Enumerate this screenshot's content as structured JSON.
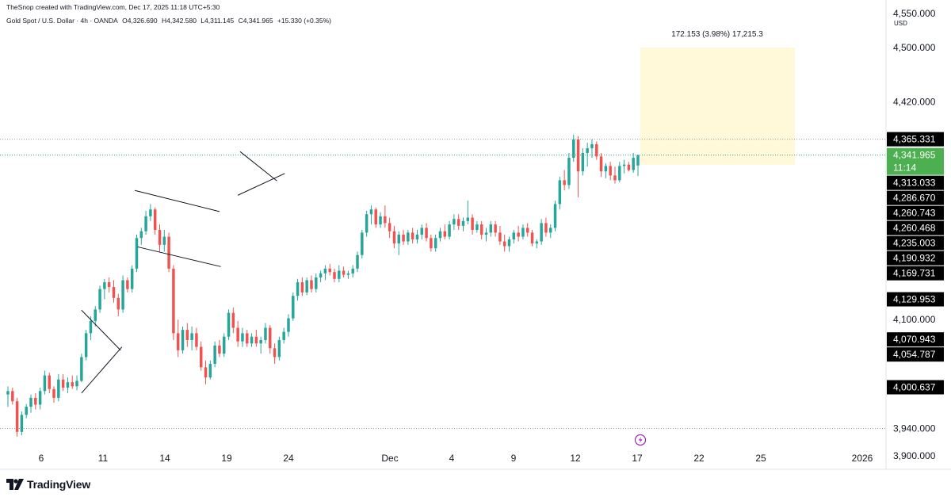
{
  "header": {
    "credit": "TheSnop created with TradingView.com, Dec 17, 2025 11:18 UTC+5:30",
    "symbol": "Gold Spot / U.S. Dollar · 4h · OANDA",
    "open": "O4,326.690",
    "high": "H4,342.580",
    "low": "L4,311.145",
    "close": "C4,341.965",
    "change": "+15.330 (+0.35%)"
  },
  "currency": "USD",
  "brand": {
    "logo_text": "TradingView",
    "logo_icon": "tradingview-logo-icon"
  },
  "colors": {
    "up": "#26a69a",
    "down": "#ef5350",
    "tag_dark": "#000000",
    "tag_last": "#4caf50",
    "projection_fill": "#fff9d9",
    "line": "#131722",
    "grid": "#e0e3eb",
    "event_icon": "#9c27b0"
  },
  "chart_data": {
    "type": "candlestick",
    "title": "Gold Spot / U.S. Dollar · 4h · OANDA",
    "xlabel": "",
    "ylabel": "USD",
    "ylim": [
      3880,
      4570
    ],
    "x_ticks": [
      "6",
      "11",
      "14",
      "19",
      "24",
      "Dec",
      "4",
      "9",
      "12",
      "17",
      "22",
      "25",
      "2026"
    ],
    "y_ticks": [
      "4,550.000",
      "4,500.000",
      "4,420.000",
      "4,100.000",
      "3,940.000",
      "3,900.000"
    ],
    "price_tags": [
      {
        "label": "4,365.331",
        "value": 4365.331,
        "style": "dark"
      },
      {
        "label": "4,341.965",
        "value": 4341.965,
        "sub": "11:14",
        "style": "last"
      },
      {
        "label": "4,313.033",
        "value": 4313.033,
        "style": "dark"
      },
      {
        "label": "4,286.670",
        "value": 4286.67,
        "style": "dark"
      },
      {
        "label": "4,260.743",
        "value": 4260.743,
        "style": "dark"
      },
      {
        "label": "4,260.468",
        "value": 4260.468,
        "style": "dark"
      },
      {
        "label": "4,235.003",
        "value": 4235.003,
        "style": "dark"
      },
      {
        "label": "4,190.932",
        "value": 4190.932,
        "style": "dark"
      },
      {
        "label": "4,169.731",
        "value": 4169.731,
        "style": "dark"
      },
      {
        "label": "4,129.953",
        "value": 4129.953,
        "style": "dark"
      },
      {
        "label": "4,070.943",
        "value": 4070.943,
        "style": "dark"
      },
      {
        "label": "4,054.787",
        "value": 4054.787,
        "style": "dark"
      },
      {
        "label": "4,000.637",
        "value": 4000.637,
        "style": "dark"
      }
    ],
    "reference_lines": [
      4365.331,
      4341.965,
      3940
    ],
    "projection": {
      "label": "172.153 (3.98%) 17,215.3",
      "from": 4327.8,
      "to": 4500
    },
    "candles": [
      {
        "o": 3990,
        "h": 4002,
        "l": 3972,
        "c": 3995
      },
      {
        "o": 3995,
        "h": 4000,
        "l": 3975,
        "c": 3980
      },
      {
        "o": 3980,
        "h": 3985,
        "l": 3928,
        "c": 3935
      },
      {
        "o": 3935,
        "h": 3965,
        "l": 3930,
        "c": 3960
      },
      {
        "o": 3960,
        "h": 3976,
        "l": 3955,
        "c": 3972
      },
      {
        "o": 3972,
        "h": 3990,
        "l": 3963,
        "c": 3985
      },
      {
        "o": 3985,
        "h": 3992,
        "l": 3968,
        "c": 3975
      },
      {
        "o": 3975,
        "h": 4000,
        "l": 3968,
        "c": 3995
      },
      {
        "o": 3995,
        "h": 4025,
        "l": 3990,
        "c": 4018
      },
      {
        "o": 4018,
        "h": 4022,
        "l": 3992,
        "c": 3998
      },
      {
        "o": 3998,
        "h": 4002,
        "l": 3978,
        "c": 3985
      },
      {
        "o": 3985,
        "h": 4020,
        "l": 3980,
        "c": 4012
      },
      {
        "o": 4012,
        "h": 4020,
        "l": 3995,
        "c": 4000
      },
      {
        "o": 4000,
        "h": 4015,
        "l": 3992,
        "c": 4008
      },
      {
        "o": 4008,
        "h": 4018,
        "l": 3998,
        "c": 4002
      },
      {
        "o": 4002,
        "h": 4018,
        "l": 3996,
        "c": 4010
      },
      {
        "o": 4010,
        "h": 4050,
        "l": 4008,
        "c": 4045
      },
      {
        "o": 4045,
        "h": 4085,
        "l": 4040,
        "c": 4080
      },
      {
        "o": 4080,
        "h": 4105,
        "l": 4070,
        "c": 4098
      },
      {
        "o": 4098,
        "h": 4120,
        "l": 4090,
        "c": 4115
      },
      {
        "o": 4115,
        "h": 4150,
        "l": 4110,
        "c": 4145
      },
      {
        "o": 4145,
        "h": 4160,
        "l": 4130,
        "c": 4155
      },
      {
        "o": 4155,
        "h": 4162,
        "l": 4140,
        "c": 4148
      },
      {
        "o": 4148,
        "h": 4158,
        "l": 4125,
        "c": 4132
      },
      {
        "o": 4132,
        "h": 4138,
        "l": 4105,
        "c": 4115
      },
      {
        "o": 4115,
        "h": 4165,
        "l": 4110,
        "c": 4158
      },
      {
        "o": 4158,
        "h": 4162,
        "l": 4140,
        "c": 4145
      },
      {
        "o": 4145,
        "h": 4180,
        "l": 4140,
        "c": 4175
      },
      {
        "o": 4175,
        "h": 4225,
        "l": 4170,
        "c": 4220
      },
      {
        "o": 4220,
        "h": 4235,
        "l": 4210,
        "c": 4230
      },
      {
        "o": 4230,
        "h": 4260,
        "l": 4225,
        "c": 4252
      },
      {
        "o": 4252,
        "h": 4270,
        "l": 4245,
        "c": 4262
      },
      {
        "o": 4262,
        "h": 4265,
        "l": 4225,
        "c": 4232
      },
      {
        "o": 4232,
        "h": 4240,
        "l": 4200,
        "c": 4210
      },
      {
        "o": 4210,
        "h": 4232,
        "l": 4200,
        "c": 4222
      },
      {
        "o": 4222,
        "h": 4228,
        "l": 4170,
        "c": 4175
      },
      {
        "o": 4175,
        "h": 4180,
        "l": 4070,
        "c": 4080
      },
      {
        "o": 4080,
        "h": 4100,
        "l": 4045,
        "c": 4055
      },
      {
        "o": 4055,
        "h": 4090,
        "l": 4050,
        "c": 4085
      },
      {
        "o": 4085,
        "h": 4095,
        "l": 4060,
        "c": 4070
      },
      {
        "o": 4070,
        "h": 4090,
        "l": 4055,
        "c": 4080
      },
      {
        "o": 4080,
        "h": 4088,
        "l": 4055,
        "c": 4060
      },
      {
        "o": 4060,
        "h": 4068,
        "l": 4025,
        "c": 4030
      },
      {
        "o": 4030,
        "h": 4040,
        "l": 4005,
        "c": 4015
      },
      {
        "o": 4015,
        "h": 4040,
        "l": 4012,
        "c": 4035
      },
      {
        "o": 4035,
        "h": 4068,
        "l": 4030,
        "c": 4062
      },
      {
        "o": 4062,
        "h": 4070,
        "l": 4045,
        "c": 4050
      },
      {
        "o": 4050,
        "h": 4080,
        "l": 4045,
        "c": 4075
      },
      {
        "o": 4075,
        "h": 4115,
        "l": 4070,
        "c": 4110
      },
      {
        "o": 4110,
        "h": 4118,
        "l": 4080,
        "c": 4088
      },
      {
        "o": 4088,
        "h": 4098,
        "l": 4060,
        "c": 4068
      },
      {
        "o": 4068,
        "h": 4088,
        "l": 4060,
        "c": 4080
      },
      {
        "o": 4080,
        "h": 4085,
        "l": 4060,
        "c": 4065
      },
      {
        "o": 4065,
        "h": 4080,
        "l": 4060,
        "c": 4075
      },
      {
        "o": 4075,
        "h": 4085,
        "l": 4060,
        "c": 4065
      },
      {
        "o": 4065,
        "h": 4075,
        "l": 4050,
        "c": 4070
      },
      {
        "o": 4070,
        "h": 4095,
        "l": 4065,
        "c": 4088
      },
      {
        "o": 4088,
        "h": 4092,
        "l": 4050,
        "c": 4058
      },
      {
        "o": 4058,
        "h": 4065,
        "l": 4035,
        "c": 4045
      },
      {
        "o": 4045,
        "h": 4075,
        "l": 4040,
        "c": 4070
      },
      {
        "o": 4070,
        "h": 4088,
        "l": 4065,
        "c": 4082
      },
      {
        "o": 4082,
        "h": 4108,
        "l": 4075,
        "c": 4102
      },
      {
        "o": 4102,
        "h": 4140,
        "l": 4098,
        "c": 4135
      },
      {
        "o": 4135,
        "h": 4160,
        "l": 4128,
        "c": 4155
      },
      {
        "o": 4155,
        "h": 4162,
        "l": 4135,
        "c": 4140
      },
      {
        "o": 4140,
        "h": 4162,
        "l": 4136,
        "c": 4158
      },
      {
        "o": 4158,
        "h": 4165,
        "l": 4140,
        "c": 4145
      },
      {
        "o": 4145,
        "h": 4168,
        "l": 4140,
        "c": 4162
      },
      {
        "o": 4162,
        "h": 4172,
        "l": 4155,
        "c": 4168
      },
      {
        "o": 4168,
        "h": 4180,
        "l": 4158,
        "c": 4175
      },
      {
        "o": 4175,
        "h": 4182,
        "l": 4165,
        "c": 4170
      },
      {
        "o": 4170,
        "h": 4175,
        "l": 4155,
        "c": 4160
      },
      {
        "o": 4160,
        "h": 4180,
        "l": 4155,
        "c": 4172
      },
      {
        "o": 4172,
        "h": 4178,
        "l": 4162,
        "c": 4166
      },
      {
        "o": 4166,
        "h": 4172,
        "l": 4160,
        "c": 4168
      },
      {
        "o": 4168,
        "h": 4180,
        "l": 4162,
        "c": 4175
      },
      {
        "o": 4175,
        "h": 4200,
        "l": 4170,
        "c": 4195
      },
      {
        "o": 4195,
        "h": 4232,
        "l": 4190,
        "c": 4228
      },
      {
        "o": 4228,
        "h": 4260,
        "l": 4222,
        "c": 4255
      },
      {
        "o": 4255,
        "h": 4268,
        "l": 4240,
        "c": 4262
      },
      {
        "o": 4262,
        "h": 4265,
        "l": 4235,
        "c": 4240
      },
      {
        "o": 4240,
        "h": 4258,
        "l": 4235,
        "c": 4252
      },
      {
        "o": 4252,
        "h": 4268,
        "l": 4235,
        "c": 4242
      },
      {
        "o": 4242,
        "h": 4250,
        "l": 4220,
        "c": 4230
      },
      {
        "o": 4230,
        "h": 4238,
        "l": 4205,
        "c": 4212
      },
      {
        "o": 4212,
        "h": 4230,
        "l": 4195,
        "c": 4225
      },
      {
        "o": 4225,
        "h": 4232,
        "l": 4210,
        "c": 4215
      },
      {
        "o": 4215,
        "h": 4232,
        "l": 4210,
        "c": 4228
      },
      {
        "o": 4228,
        "h": 4235,
        "l": 4212,
        "c": 4218
      },
      {
        "o": 4218,
        "h": 4232,
        "l": 4212,
        "c": 4225
      },
      {
        "o": 4225,
        "h": 4240,
        "l": 4218,
        "c": 4235
      },
      {
        "o": 4235,
        "h": 4242,
        "l": 4215,
        "c": 4220
      },
      {
        "o": 4220,
        "h": 4225,
        "l": 4200,
        "c": 4205
      },
      {
        "o": 4205,
        "h": 4225,
        "l": 4200,
        "c": 4220
      },
      {
        "o": 4220,
        "h": 4235,
        "l": 4215,
        "c": 4230
      },
      {
        "o": 4230,
        "h": 4240,
        "l": 4218,
        "c": 4222
      },
      {
        "o": 4222,
        "h": 4245,
        "l": 4218,
        "c": 4240
      },
      {
        "o": 4240,
        "h": 4255,
        "l": 4232,
        "c": 4248
      },
      {
        "o": 4248,
        "h": 4255,
        "l": 4232,
        "c": 4238
      },
      {
        "o": 4238,
        "h": 4250,
        "l": 4230,
        "c": 4245
      },
      {
        "o": 4245,
        "h": 4275,
        "l": 4240,
        "c": 4250
      },
      {
        "o": 4250,
        "h": 4255,
        "l": 4225,
        "c": 4232
      },
      {
        "o": 4232,
        "h": 4245,
        "l": 4228,
        "c": 4240
      },
      {
        "o": 4240,
        "h": 4245,
        "l": 4218,
        "c": 4225
      },
      {
        "o": 4225,
        "h": 4235,
        "l": 4215,
        "c": 4228
      },
      {
        "o": 4228,
        "h": 4245,
        "l": 4222,
        "c": 4240
      },
      {
        "o": 4240,
        "h": 4245,
        "l": 4222,
        "c": 4228
      },
      {
        "o": 4228,
        "h": 4238,
        "l": 4210,
        "c": 4215
      },
      {
        "o": 4215,
        "h": 4225,
        "l": 4200,
        "c": 4208
      },
      {
        "o": 4208,
        "h": 4222,
        "l": 4200,
        "c": 4218
      },
      {
        "o": 4218,
        "h": 4232,
        "l": 4212,
        "c": 4228
      },
      {
        "o": 4228,
        "h": 4238,
        "l": 4215,
        "c": 4222
      },
      {
        "o": 4222,
        "h": 4240,
        "l": 4218,
        "c": 4235
      },
      {
        "o": 4235,
        "h": 4242,
        "l": 4222,
        "c": 4228
      },
      {
        "o": 4228,
        "h": 4232,
        "l": 4208,
        "c": 4212
      },
      {
        "o": 4212,
        "h": 4218,
        "l": 4205,
        "c": 4215
      },
      {
        "o": 4215,
        "h": 4248,
        "l": 4210,
        "c": 4242
      },
      {
        "o": 4242,
        "h": 4250,
        "l": 4222,
        "c": 4228
      },
      {
        "o": 4228,
        "h": 4240,
        "l": 4220,
        "c": 4235
      },
      {
        "o": 4235,
        "h": 4275,
        "l": 4230,
        "c": 4270
      },
      {
        "o": 4270,
        "h": 4310,
        "l": 4262,
        "c": 4305
      },
      {
        "o": 4305,
        "h": 4320,
        "l": 4290,
        "c": 4298
      },
      {
        "o": 4298,
        "h": 4345,
        "l": 4292,
        "c": 4338
      },
      {
        "o": 4338,
        "h": 4372,
        "l": 4332,
        "c": 4365
      },
      {
        "o": 4365,
        "h": 4370,
        "l": 4280,
        "c": 4318
      },
      {
        "o": 4318,
        "h": 4352,
        "l": 4312,
        "c": 4345
      },
      {
        "o": 4345,
        "h": 4360,
        "l": 4325,
        "c": 4352
      },
      {
        "o": 4352,
        "h": 4365,
        "l": 4338,
        "c": 4358
      },
      {
        "o": 4358,
        "h": 4362,
        "l": 4335,
        "c": 4340
      },
      {
        "o": 4340,
        "h": 4345,
        "l": 4310,
        "c": 4318
      },
      {
        "o": 4318,
        "h": 4330,
        "l": 4308,
        "c": 4326
      },
      {
        "o": 4326,
        "h": 4332,
        "l": 4305,
        "c": 4312
      },
      {
        "o": 4312,
        "h": 4325,
        "l": 4300,
        "c": 4305
      },
      {
        "o": 4305,
        "h": 4332,
        "l": 4302,
        "c": 4326
      },
      {
        "o": 4326,
        "h": 4335,
        "l": 4315,
        "c": 4328
      },
      {
        "o": 4328,
        "h": 4332,
        "l": 4318,
        "c": 4320
      },
      {
        "o": 4320,
        "h": 4345,
        "l": 4316,
        "c": 4338
      },
      {
        "o": 4326.69,
        "h": 4342.58,
        "l": 4311.145,
        "c": 4341.965
      }
    ],
    "trendlines": [
      {
        "from": [
          16.0,
          4114
        ],
        "to": [
          24.5,
          4055
        ]
      },
      {
        "from": [
          16.0,
          3992
        ],
        "to": [
          24.8,
          4060
        ]
      },
      {
        "from": [
          27.6,
          4290
        ],
        "to": [
          46.0,
          4259
        ]
      },
      {
        "from": [
          28.2,
          4207
        ],
        "to": [
          46.3,
          4178
        ]
      },
      {
        "from": [
          50.5,
          4347
        ],
        "to": [
          58.5,
          4304
        ]
      },
      {
        "from": [
          50.0,
          4283
        ],
        "to": [
          60.2,
          4315
        ]
      }
    ]
  }
}
